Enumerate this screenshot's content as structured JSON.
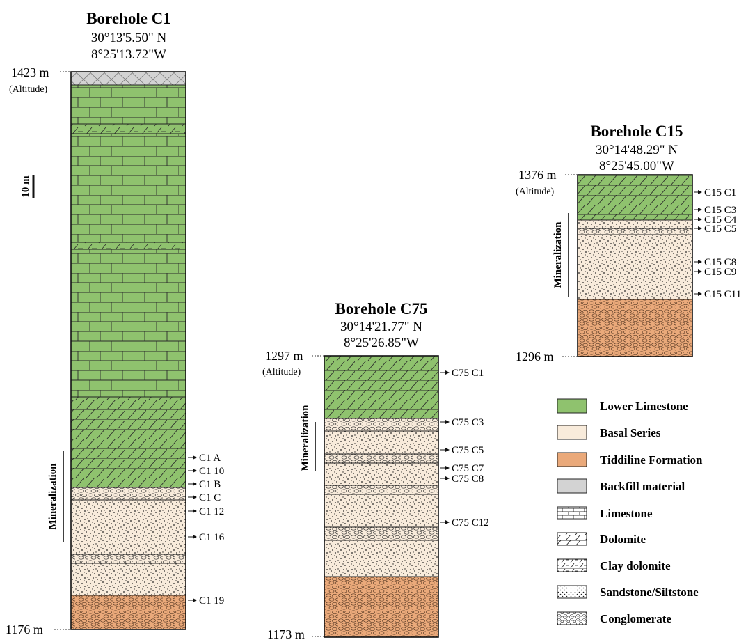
{
  "scale_bar": {
    "label": "10 m"
  },
  "mineralization_label": "Mineralization",
  "boreholes": [
    {
      "title": "Borehole C1",
      "lat": "30°13'5.50\" N",
      "lon": "8°25'13.72\"W",
      "top_label": "1423 m",
      "altitude_label": "(Altitude)",
      "bottom_label": "1176 m",
      "layers": [
        {
          "formation": "Backfill material",
          "lithology": "backfill"
        },
        {
          "formation": "Lower Limestone",
          "lithology": "Limestone"
        },
        {
          "formation": "Lower Limestone",
          "lithology": "Clay dolomite"
        },
        {
          "formation": "Lower Limestone",
          "lithology": "Limestone"
        },
        {
          "formation": "Lower Limestone",
          "lithology": "Clay dolomite"
        },
        {
          "formation": "Lower Limestone",
          "lithology": "Limestone"
        },
        {
          "formation": "Lower Limestone",
          "lithology": "Dolomite"
        },
        {
          "formation": "Basal Series",
          "lithology": "Conglomerate"
        },
        {
          "formation": "Basal Series",
          "lithology": "Sandstone/Siltstone"
        },
        {
          "formation": "Basal Series",
          "lithology": "Conglomerate"
        },
        {
          "formation": "Basal Series",
          "lithology": "Sandstone/Siltstone"
        },
        {
          "formation": "Tiddiline Formation",
          "lithology": "Conglomerate"
        }
      ],
      "samples": [
        "C1 A",
        "C1 10",
        "C1 B",
        "C1 C",
        "C1 12",
        "C1 16",
        "C1 19"
      ]
    },
    {
      "title": "Borehole C75",
      "lat": "30°14'21.77\" N",
      "lon": "8°25'26.85\"W",
      "top_label": "1297 m",
      "altitude_label": "(Altitude)",
      "bottom_label": "1173 m",
      "layers": [
        {
          "formation": "Lower Limestone",
          "lithology": "Dolomite"
        },
        {
          "formation": "Basal Series",
          "lithology": "Conglomerate"
        },
        {
          "formation": "Basal Series",
          "lithology": "Sandstone/Siltstone"
        },
        {
          "formation": "Basal Series",
          "lithology": "Conglomerate"
        },
        {
          "formation": "Basal Series",
          "lithology": "Sandstone/Siltstone"
        },
        {
          "formation": "Basal Series",
          "lithology": "Conglomerate"
        },
        {
          "formation": "Basal Series",
          "lithology": "Sandstone/Siltstone"
        },
        {
          "formation": "Basal Series",
          "lithology": "Conglomerate"
        },
        {
          "formation": "Basal Series",
          "lithology": "Sandstone/Siltstone"
        },
        {
          "formation": "Tiddiline Formation",
          "lithology": "Conglomerate"
        }
      ],
      "samples": [
        "C75 C1",
        "C75 C3",
        "C75 C5",
        "C75 C7",
        "C75 C8",
        "C75 C12"
      ]
    },
    {
      "title": "Borehole C15",
      "lat": "30°14'48.29\" N",
      "lon": "8°25'45.00\"W",
      "top_label": "1376 m",
      "altitude_label": "(Altitude)",
      "bottom_label": "1296 m",
      "layers": [
        {
          "formation": "Lower Limestone",
          "lithology": "Dolomite"
        },
        {
          "formation": "Basal Series",
          "lithology": "Sandstone/Siltstone"
        },
        {
          "formation": "Basal Series",
          "lithology": "Conglomerate"
        },
        {
          "formation": "Basal Series",
          "lithology": "Sandstone/Siltstone"
        },
        {
          "formation": "Tiddiline Formation",
          "lithology": "Conglomerate"
        }
      ],
      "samples": [
        "C15 C1",
        "C15 C3",
        "C15 C4",
        "C15 C5",
        "C15 C8",
        "C15 C9",
        "C15 C11"
      ]
    }
  ],
  "legend": {
    "colors": [
      {
        "label": "Lower Limestone",
        "color": "#8fc26e"
      },
      {
        "label": "Basal Series",
        "color": "#f8ebdb"
      },
      {
        "label": "Tiddiline Formation",
        "color": "#eaa97a"
      },
      {
        "label": "Backfill material",
        "color": "#d3d3d3"
      }
    ],
    "patterns": [
      {
        "label": "Limestone"
      },
      {
        "label": "Dolomite"
      },
      {
        "label": "Clay dolomite"
      },
      {
        "label": "Sandstone/Siltstone"
      },
      {
        "label": "Conglomerate"
      }
    ]
  }
}
